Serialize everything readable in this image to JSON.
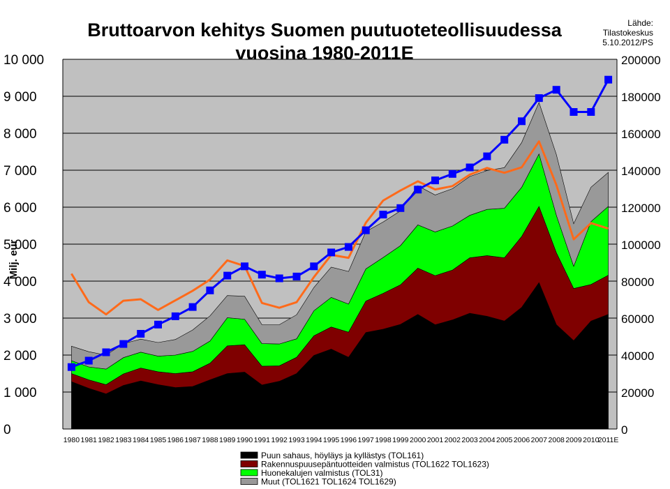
{
  "chart_data": {
    "type": "area",
    "stacked": true,
    "title_line1": "Bruttoarvon kehitys Suomen puutuoteteollisuudessa",
    "title_line2": "vuosina 1980-2011E",
    "source_line1": "Lähde:",
    "source_line2": "Tilastokeskus",
    "source_line3": "5.10.2012/PS",
    "ylabel": "Milj. eur",
    "y_left_ticks": [
      "0",
      "1 000",
      "2 000",
      "3 000",
      "4 000",
      "5 000",
      "6 000",
      "7 000",
      "8 000",
      "9 000",
      "10 000"
    ],
    "y_right_ticks": [
      "0",
      "20000",
      "40000",
      "60000",
      "80000",
      "100000",
      "120000",
      "140000",
      "160000",
      "180000",
      "200000"
    ],
    "ylim_left": [
      0,
      10000
    ],
    "ylim_right": [
      0,
      200000
    ],
    "categories": [
      "1980",
      "1981",
      "1982",
      "1983",
      "1984",
      "1985",
      "1986",
      "1987",
      "1988",
      "1989",
      "1990",
      "1991",
      "1992",
      "1993",
      "1994",
      "1995",
      "1996",
      "1997",
      "1998",
      "1999",
      "2000",
      "2001",
      "2002",
      "2003",
      "2004",
      "2005",
      "2006",
      "2007",
      "2008",
      "2009",
      "2010",
      "2011E"
    ],
    "series": [
      {
        "name": "Puun sahaus, höyläys ja kyllästys (TOL161)",
        "color": "#000000",
        "values": [
          1280,
          1100,
          950,
          1180,
          1300,
          1200,
          1120,
          1150,
          1330,
          1500,
          1540,
          1190,
          1290,
          1500,
          1990,
          2160,
          1940,
          2610,
          2700,
          2830,
          3100,
          2820,
          2950,
          3130,
          3050,
          2920,
          3290,
          3960,
          2820,
          2390,
          2920,
          3100
        ]
      },
      {
        "name": "Rakennuspuusepäntuotteiden valmistus (TOL1622 TOL1623)",
        "color": "#7f0000",
        "values": [
          220,
          230,
          250,
          310,
          350,
          350,
          380,
          400,
          450,
          750,
          740,
          510,
          420,
          440,
          530,
          600,
          680,
          850,
          970,
          1070,
          1250,
          1330,
          1350,
          1500,
          1640,
          1710,
          1920,
          2060,
          1950,
          1410,
          990,
          1060
        ]
      },
      {
        "name": "Huonekalujen valmistus (TOL31)",
        "color": "#00ff00",
        "values": [
          350,
          350,
          420,
          440,
          430,
          420,
          500,
          550,
          600,
          760,
          690,
          610,
          590,
          500,
          680,
          800,
          760,
          870,
          970,
          1060,
          1170,
          1180,
          1190,
          1150,
          1250,
          1340,
          1330,
          1420,
          1010,
          600,
          1700,
          1860
        ]
      },
      {
        "name": "Muut (TOL1621 TOL1624 TOL1629)",
        "color": "#999999",
        "values": [
          390,
          410,
          380,
          380,
          350,
          370,
          420,
          580,
          680,
          600,
          620,
          510,
          520,
          650,
          630,
          820,
          880,
          1010,
          960,
          940,
          1060,
          1000,
          1010,
          1050,
          1050,
          1100,
          1210,
          1390,
          1640,
          1150,
          930,
          920
        ]
      }
    ],
    "line_orange": {
      "axis": "left",
      "color": "#ff6a1a",
      "values": [
        4200,
        3430,
        3100,
        3470,
        3510,
        3220,
        3480,
        3740,
        4040,
        4560,
        4410,
        3410,
        3280,
        3430,
        4110,
        4710,
        4630,
        5580,
        6180,
        6450,
        6700,
        6480,
        6570,
        6880,
        7060,
        6930,
        7080,
        7780,
        6600,
        5130,
        5570,
        5420
      ]
    },
    "line_blue": {
      "axis": "right",
      "color": "#0000ff",
      "marker_color": "#0000ff",
      "values": [
        33500,
        37000,
        41500,
        46000,
        51500,
        56500,
        61000,
        66000,
        75000,
        83000,
        88000,
        83500,
        81500,
        82500,
        88000,
        95500,
        98500,
        107500,
        116000,
        119500,
        129500,
        134500,
        138000,
        141500,
        147500,
        156500,
        166500,
        179000,
        183500,
        171500,
        171500,
        189000
      ]
    },
    "grid": true,
    "legend_position": "bottom"
  }
}
